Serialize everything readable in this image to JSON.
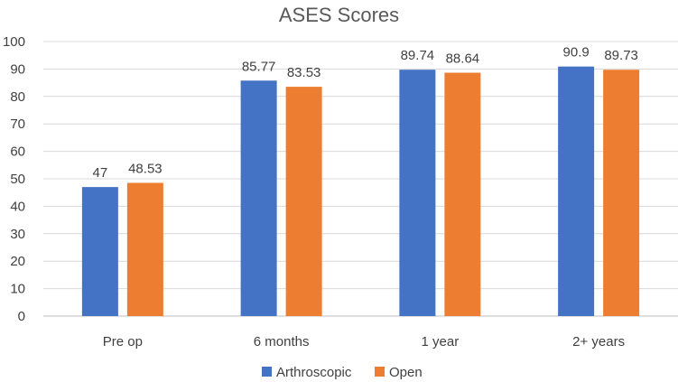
{
  "chart_data": {
    "type": "bar",
    "title": "ASES Scores",
    "categories": [
      "Pre op",
      "6 months",
      "1 year",
      "2+ years"
    ],
    "series": [
      {
        "name": "Arthroscopic",
        "values": [
          47,
          85.77,
          89.74,
          90.9
        ],
        "labels": [
          "47",
          "85.77",
          "89.74",
          "90.9"
        ],
        "color": "#4472C4"
      },
      {
        "name": "Open",
        "values": [
          48.53,
          83.53,
          88.64,
          89.73
        ],
        "labels": [
          "48.53",
          "83.53",
          "88.64",
          "89.73"
        ],
        "color": "#ED7D31"
      }
    ],
    "ylim": [
      0,
      100
    ],
    "yticks": [
      0,
      10,
      20,
      30,
      40,
      50,
      60,
      70,
      80,
      90,
      100
    ],
    "grid": true,
    "legend_position": "bottom"
  }
}
